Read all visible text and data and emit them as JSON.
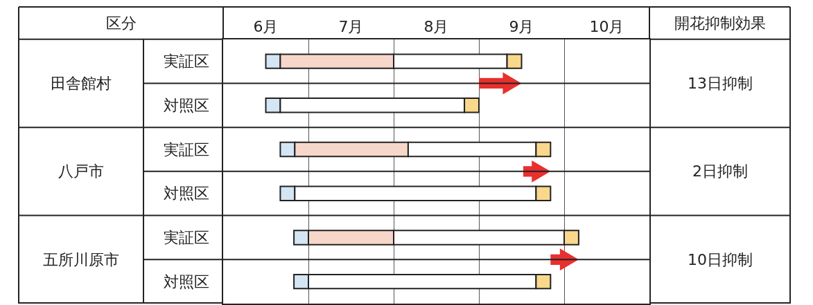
{
  "chart_data": {
    "type": "bar",
    "orientation": "horizontal",
    "categories": [
      "実証区",
      "対照区",
      "実証区",
      "対照区",
      "実証区",
      "対照区"
    ],
    "series": [
      {
        "color": "#d4e5f3",
        "base": [
          6.5,
          6.5,
          6.67,
          6.67,
          6.83,
          6.83
        ],
        "values": [
          0.17,
          0.17,
          0.17,
          0.17,
          0.17,
          0.17
        ]
      },
      {
        "color": "#f7d7c9",
        "base": [
          6.67,
          null,
          6.84,
          null,
          7.0,
          null
        ],
        "values": [
          1.33,
          null,
          1.33,
          null,
          1.0,
          null
        ]
      },
      {
        "color": "#ffffff",
        "base": [
          8.0,
          6.67,
          8.17,
          6.84,
          8.0,
          7.0
        ],
        "values": [
          1.33,
          2.16,
          1.5,
          2.83,
          2.0,
          2.67
        ]
      },
      {
        "color": "#f9d88c",
        "base": [
          9.33,
          8.83,
          9.67,
          9.67,
          10.0,
          9.67
        ],
        "values": [
          0.17,
          0.17,
          0.17,
          0.17,
          0.17,
          0.17
        ]
      }
    ],
    "xlim": [
      6,
      11
    ],
    "xticks": [
      {
        "value": 6.5,
        "label": "6月"
      },
      {
        "value": 7.5,
        "label": "7月"
      },
      {
        "value": 8.5,
        "label": "8月"
      },
      {
        "value": 9.5,
        "label": "9月"
      },
      {
        "value": 10.5,
        "label": "10月"
      },
      {
        "value": 7,
        "label": null
      },
      {
        "value": 8,
        "label": null
      },
      {
        "value": 9,
        "label": null
      },
      {
        "value": 10,
        "label": null
      }
    ],
    "grid": "x",
    "legend": false,
    "annotations": [
      "区分",
      "開花抑制効果",
      "田舎館村",
      "八戸市",
      "五所川原市",
      "13日抑制",
      "2日抑制",
      "10日抑制"
    ]
  }
}
